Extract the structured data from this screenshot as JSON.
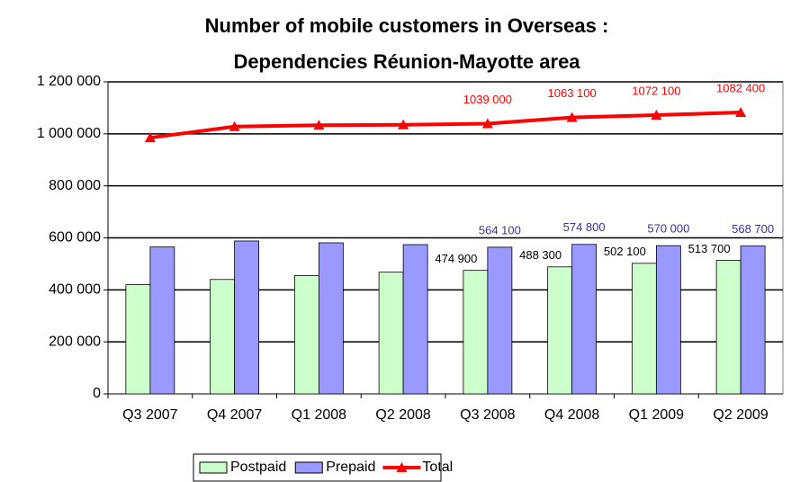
{
  "chart_data": {
    "type": "bar_line",
    "title": "Number of mobile customers in Overseas : Dependencies Réunion-Mayotte area",
    "categories": [
      "Q3 2007",
      "Q4 2007",
      "Q1 2008",
      "Q2 2008",
      "Q3 2008",
      "Q4 2008",
      "Q1 2009",
      "Q2 2009"
    ],
    "series": [
      {
        "name": "Postpaid",
        "color": "#ccffcc",
        "kind": "bar",
        "values": [
          420000,
          440000,
          455000,
          468000,
          474900,
          488300,
          502100,
          513700
        ],
        "value_labels": [
          null,
          null,
          null,
          null,
          "474 900",
          "488 300",
          "502 100",
          "513 700"
        ]
      },
      {
        "name": "Prepaid",
        "color": "#9999ff",
        "kind": "bar",
        "values": [
          565000,
          588000,
          581000,
          574000,
          564100,
          574800,
          570000,
          568700
        ],
        "value_labels": [
          null,
          null,
          null,
          null,
          "564 100",
          "574 800",
          "570 000",
          "568 700"
        ]
      },
      {
        "name": "Total",
        "color": "#ff0000",
        "kind": "line",
        "values": [
          985000,
          1028000,
          1033000,
          1035000,
          1039000,
          1063100,
          1072100,
          1082400
        ],
        "value_labels": [
          null,
          null,
          null,
          null,
          "1039 000",
          "1063 100",
          "1072 100",
          "1082 400"
        ]
      }
    ],
    "ylim": [
      0,
      1200000
    ],
    "yticks": [
      0,
      {
        "value": 200000,
        "label": "200 000"
      },
      {
        "value": 400000,
        "label": "400 000"
      },
      {
        "value": 600000,
        "label": "600 000"
      },
      {
        "value": 800000,
        "label": "800 000"
      },
      {
        "value": 1000000,
        "label": "1 000 000"
      },
      {
        "value": 1200000,
        "label": "1 200 000"
      }
    ],
    "grid": true,
    "legend": "bottom"
  }
}
